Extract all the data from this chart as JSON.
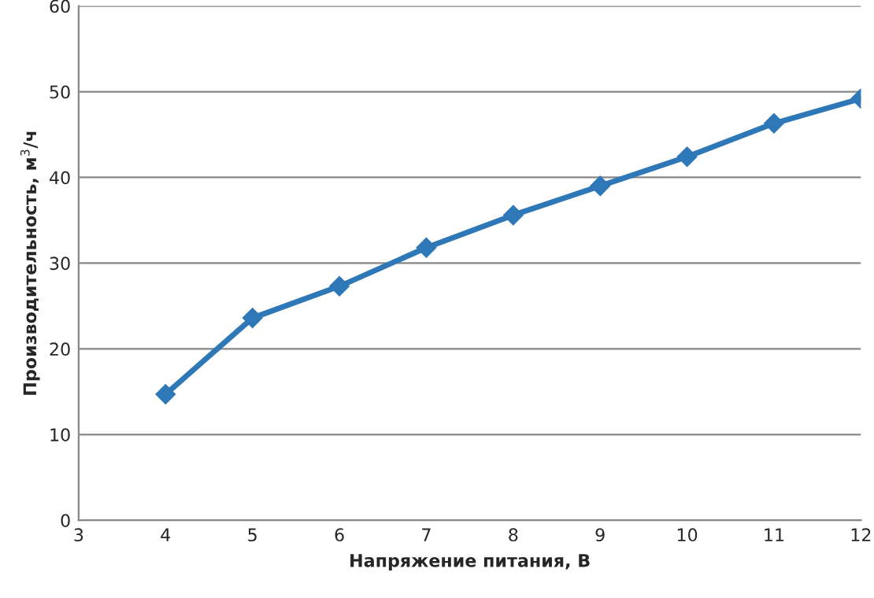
{
  "chart_data": {
    "type": "line",
    "xlabel": "Напряжение питания, В",
    "ylabel": "Производительность, м$^{3}$/ч",
    "x": [
      4,
      5,
      6,
      7,
      8,
      9,
      10,
      11,
      12
    ],
    "series": [
      {
        "color": "#2e78b8",
        "values": [
          14.7,
          23.6,
          27.3,
          31.8,
          35.6,
          39.0,
          42.4,
          46.3,
          49.2
        ]
      }
    ],
    "xlim": [
      3,
      12
    ],
    "xticks": [
      3,
      4,
      5,
      6,
      7,
      8,
      9,
      10,
      11,
      12
    ],
    "ylim": [
      0,
      60
    ],
    "yticks": [
      0,
      10,
      20,
      30,
      40,
      50,
      60
    ],
    "grid": "y",
    "marker": "diamond",
    "line_style": "solid"
  }
}
